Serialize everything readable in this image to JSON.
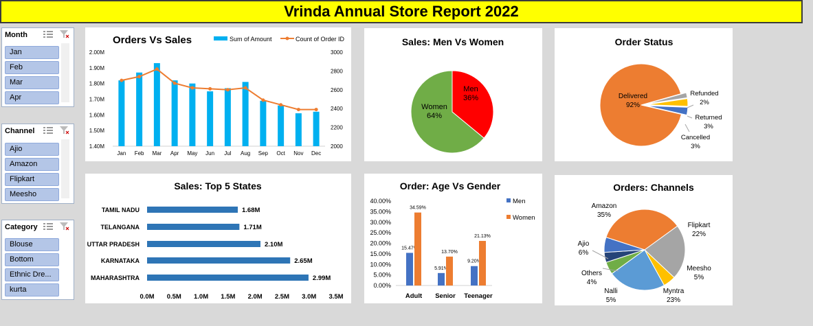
{
  "report_title": "Vrinda Annual Store Report 2022",
  "slicers": [
    {
      "label": "Month",
      "items": [
        "Jan",
        "Feb",
        "Mar",
        "Apr"
      ]
    },
    {
      "label": "Channel",
      "items": [
        "Ajio",
        "Amazon",
        "Flipkart",
        "Meesho"
      ]
    },
    {
      "label": "Category",
      "items": [
        "Blouse",
        "Bottom",
        "Ethnic Dre...",
        "kurta"
      ]
    }
  ],
  "colors": {
    "title_bg": "#ffff00",
    "blue": "#00b0f0",
    "orange": "#ed7d31",
    "bar_blue": "#2e75b6",
    "red": "#ff0000",
    "green": "#70ad47"
  },
  "chart_data": [
    {
      "type": "bar",
      "title": "Orders Vs Sales",
      "categories": [
        "Jan",
        "Feb",
        "Mar",
        "Apr",
        "May",
        "Jun",
        "Jul",
        "Aug",
        "Sep",
        "Oct",
        "Nov",
        "Dec"
      ],
      "series": [
        {
          "name": "Sum of Amount",
          "type": "bar",
          "axis": "left",
          "values": [
            1.82,
            1.87,
            1.93,
            1.82,
            1.8,
            1.75,
            1.77,
            1.81,
            1.69,
            1.66,
            1.61,
            1.62
          ]
        },
        {
          "name": "Count of Order ID",
          "type": "line",
          "axis": "right",
          "values": [
            2700,
            2740,
            2820,
            2670,
            2620,
            2610,
            2600,
            2620,
            2490,
            2440,
            2390,
            2390
          ]
        }
      ],
      "left_ticks": [
        "1.40M",
        "1.50M",
        "1.60M",
        "1.70M",
        "1.80M",
        "1.90M",
        "2.00M"
      ],
      "right_ticks": [
        "2000",
        "2200",
        "2400",
        "2600",
        "2800",
        "3000"
      ],
      "ylim_left": [
        1.4,
        2.0
      ],
      "ylim_right": [
        2000,
        3000
      ]
    },
    {
      "type": "pie",
      "title": "Sales: Men Vs Women",
      "slices": [
        {
          "label": "Men",
          "value": 36,
          "pct": "36%",
          "color": "#ff0000"
        },
        {
          "label": "Women",
          "value": 64,
          "pct": "64%",
          "color": "#70ad47"
        }
      ]
    },
    {
      "type": "pie",
      "title": "Order Status",
      "slices": [
        {
          "label": "Delivered",
          "value": 92,
          "pct": "92%",
          "color": "#ed7d31"
        },
        {
          "label": "Refunded",
          "value": 2,
          "pct": "2%",
          "color": "#a5a5a5"
        },
        {
          "label": "Returned",
          "value": 3,
          "pct": "3%",
          "color": "#ffc000"
        },
        {
          "label": "Cancelled",
          "value": 3,
          "pct": "3%",
          "color": "#4472c4"
        }
      ]
    },
    {
      "type": "bar",
      "orientation": "horizontal",
      "title": "Sales: Top 5 States",
      "categories": [
        "TAMIL NADU",
        "TELANGANA",
        "UTTAR PRADESH",
        "KARNATAKA",
        "MAHARASHTRA"
      ],
      "values": [
        1.68,
        1.71,
        2.1,
        2.65,
        2.99
      ],
      "value_labels": [
        "1.68M",
        "1.71M",
        "2.10M",
        "2.65M",
        "2.99M"
      ],
      "x_ticks": [
        "0.0M",
        "0.5M",
        "1.0M",
        "1.5M",
        "2.0M",
        "2.5M",
        "3.0M",
        "3.5M"
      ],
      "xlim": [
        0,
        3.5
      ]
    },
    {
      "type": "bar",
      "title": "Order: Age Vs Gender",
      "categories": [
        "Adult",
        "Senior",
        "Teenager"
      ],
      "series": [
        {
          "name": "Men",
          "values": [
            15.47,
            5.91,
            9.2
          ],
          "labels": [
            "15.47%",
            "5.91%",
            "9.20%"
          ],
          "color": "#4472c4"
        },
        {
          "name": "Women",
          "values": [
            34.59,
            13.7,
            21.13
          ],
          "labels": [
            "34.59%",
            "13.70%",
            "21.13%"
          ],
          "color": "#ed7d31"
        }
      ],
      "y_ticks": [
        "0.00%",
        "5.00%",
        "10.00%",
        "15.00%",
        "20.00%",
        "25.00%",
        "30.00%",
        "35.00%",
        "40.00%"
      ],
      "ylim": [
        0,
        40
      ]
    },
    {
      "type": "pie",
      "title": "Orders: Channels",
      "slices": [
        {
          "label": "Amazon",
          "value": 35,
          "pct": "35%",
          "color": "#ed7d31"
        },
        {
          "label": "Flipkart",
          "value": 22,
          "pct": "22%",
          "color": "#a5a5a5"
        },
        {
          "label": "Meesho",
          "value": 5,
          "pct": "5%",
          "color": "#ffc000"
        },
        {
          "label": "Myntra",
          "value": 23,
          "pct": "23%",
          "color": "#5b9bd5"
        },
        {
          "label": "Nalli",
          "value": 5,
          "pct": "5%",
          "color": "#70ad47"
        },
        {
          "label": "Others",
          "value": 4,
          "pct": "4%",
          "color": "#264478"
        },
        {
          "label": "Ajio",
          "value": 6,
          "pct": "6%",
          "color": "#4472c4"
        }
      ]
    }
  ]
}
